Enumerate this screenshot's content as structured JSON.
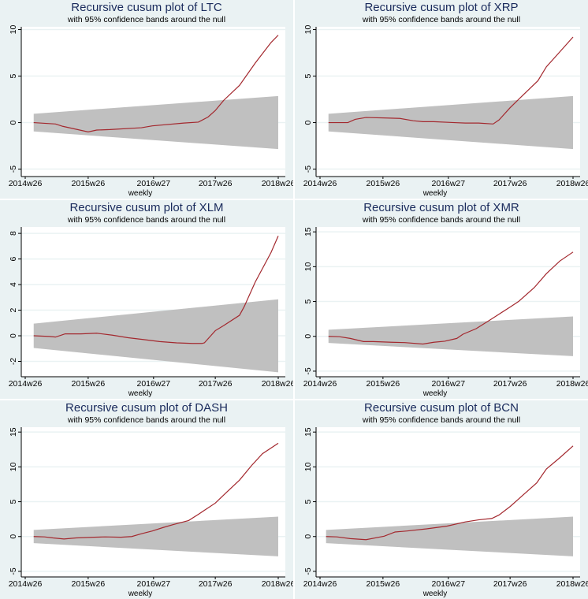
{
  "chart_data": [
    {
      "type": "line",
      "title": "Recursive cusum plot of LTC",
      "subtitle": "with 95% confidence bands around the null",
      "xlabel": "weekly",
      "ylabel": "",
      "xticks": [
        "2014w26",
        "2015w26",
        "2016w27",
        "2017w26",
        "2018w26"
      ],
      "yticks": [
        -5,
        0,
        5,
        10
      ],
      "ylim": [
        -5.8,
        10.3
      ],
      "grid": true,
      "band": {
        "upper": [
          0.95,
          2.85
        ],
        "lower": [
          -0.95,
          -2.85
        ],
        "color": "#c0c0c0"
      },
      "series": [
        {
          "color": "#a3282e",
          "points": [
            [
              "2014w33",
              0
            ],
            [
              "2014w51",
              -0.15
            ],
            [
              "2015w5",
              -0.4
            ],
            [
              "2015w26",
              -1.0
            ],
            [
              "2015w33",
              -0.8
            ],
            [
              "2015w44",
              -0.75
            ],
            [
              "2016w17",
              -0.55
            ],
            [
              "2016w26",
              -0.35
            ],
            [
              "2016w52",
              -0.05
            ],
            [
              "2017w12",
              0.05
            ],
            [
              "2017w20",
              0.6
            ],
            [
              "2017w26",
              1.3
            ],
            [
              "2017w33",
              2.4
            ],
            [
              "2017w46",
              4.0
            ],
            [
              "2018w7",
              6.4
            ],
            [
              "2018w20",
              8.6
            ],
            [
              "2018w26",
              9.4
            ]
          ]
        }
      ]
    },
    {
      "type": "line",
      "title": "Recursive cusum plot of XRP",
      "subtitle": "with 95% confidence bands around the null",
      "xlabel": "weekly",
      "ylabel": "",
      "xticks": [
        "2014w26",
        "2015w26",
        "2016w27",
        "2017w26",
        "2018w26"
      ],
      "yticks": [
        -5,
        0,
        5,
        10
      ],
      "ylim": [
        -5.8,
        10.3
      ],
      "grid": true,
      "band": {
        "upper": [
          0.95,
          2.85
        ],
        "lower": [
          -0.95,
          -2.85
        ],
        "color": "#c0c0c0"
      },
      "series": [
        {
          "color": "#a3282e",
          "points": [
            [
              "2014w33",
              0
            ],
            [
              "2014w49",
              0
            ],
            [
              "2015w3",
              0.35
            ],
            [
              "2015w12",
              0.55
            ],
            [
              "2015w27",
              0.5
            ],
            [
              "2015w40",
              0.45
            ],
            [
              "2015w51",
              0.2
            ],
            [
              "2016w6",
              0.1
            ],
            [
              "2016w15",
              0.1
            ],
            [
              "2016w32",
              0
            ],
            [
              "2016w41",
              -0.05
            ],
            [
              "2016w52",
              -0.05
            ],
            [
              "2017w12",
              -0.15
            ],
            [
              "2017w17",
              0.3
            ],
            [
              "2017w26",
              1.6
            ],
            [
              "2017w37",
              3.0
            ],
            [
              "2017w49",
              4.5
            ],
            [
              "2018w4",
              6.0
            ],
            [
              "2018w13",
              7.3
            ],
            [
              "2018w26",
              9.2
            ]
          ]
        }
      ]
    },
    {
      "type": "line",
      "title": "Recursive cusum plot of XLM",
      "subtitle": "with 95% confidence bands around the null",
      "xlabel": "weekly",
      "ylabel": "",
      "xticks": [
        "2014w26",
        "2015w26",
        "2016w27",
        "2017w26",
        "2018w26"
      ],
      "yticks": [
        -2,
        0,
        2,
        4,
        6,
        8
      ],
      "ylim": [
        -3.2,
        8.5
      ],
      "grid": true,
      "band": {
        "upper": [
          0.95,
          2.85
        ],
        "lower": [
          -0.95,
          -2.85
        ],
        "color": "#c0c0c0"
      },
      "series": [
        {
          "color": "#a3282e",
          "points": [
            [
              "2014w33",
              0
            ],
            [
              "2014w46",
              -0.05
            ],
            [
              "2014w51",
              -0.1
            ],
            [
              "2015w7",
              0.15
            ],
            [
              "2015w20",
              0.15
            ],
            [
              "2015w33",
              0.2
            ],
            [
              "2015w46",
              0.05
            ],
            [
              "2016w6",
              -0.15
            ],
            [
              "2016w19",
              -0.3
            ],
            [
              "2016w32",
              -0.45
            ],
            [
              "2016w46",
              -0.55
            ],
            [
              "2017w7",
              -0.6
            ],
            [
              "2017w15",
              -0.6
            ],
            [
              "2017w17",
              -0.55
            ],
            [
              "2017w26",
              0.4
            ],
            [
              "2017w33",
              0.8
            ],
            [
              "2017w46",
              1.6
            ],
            [
              "2017w50",
              2.3
            ],
            [
              "2018w7",
              4.2
            ],
            [
              "2018w20",
              6.5
            ],
            [
              "2018w26",
              7.8
            ]
          ]
        }
      ]
    },
    {
      "type": "line",
      "title": "Recursive cusum plot of XMR",
      "subtitle": "with 95% confidence bands around the null",
      "xlabel": "weekly",
      "ylabel": "",
      "xticks": [
        "2014w26",
        "2015w26",
        "2016w27",
        "2017w26",
        "2018w26"
      ],
      "yticks": [
        -5,
        0,
        5,
        10,
        15
      ],
      "ylim": [
        -5.8,
        15.7
      ],
      "grid": true,
      "band": {
        "upper": [
          0.95,
          2.85
        ],
        "lower": [
          -0.95,
          -2.85
        ],
        "color": "#c0c0c0"
      },
      "series": [
        {
          "color": "#a3282e",
          "points": [
            [
              "2014w33",
              0
            ],
            [
              "2014w42",
              -0.05
            ],
            [
              "2014w51",
              -0.3
            ],
            [
              "2015w10",
              -0.75
            ],
            [
              "2015w18",
              -0.75
            ],
            [
              "2015w33",
              -0.85
            ],
            [
              "2015w44",
              -0.9
            ],
            [
              "2016w6",
              -1.1
            ],
            [
              "2016w15",
              -0.85
            ],
            [
              "2016w24",
              -0.7
            ],
            [
              "2016w34",
              -0.3
            ],
            [
              "2016w39",
              0.3
            ],
            [
              "2016w50",
              1.1
            ],
            [
              "2017w9",
              2.3
            ],
            [
              "2017w17",
              3.2
            ],
            [
              "2017w26",
              4.2
            ],
            [
              "2017w33",
              5.0
            ],
            [
              "2017w46",
              7.0
            ],
            [
              "2018w4",
              9.0
            ],
            [
              "2018w15",
              10.8
            ],
            [
              "2018w26",
              12.1
            ]
          ]
        }
      ]
    },
    {
      "type": "line",
      "title": "Recursive cusum plot of DASH",
      "subtitle": "with 95% confidence bands around the null",
      "xlabel": "weekly",
      "ylabel": "",
      "xticks": [
        "2014w26",
        "2015w26",
        "2016w27",
        "2017w26",
        "2018w26"
      ],
      "yticks": [
        -5,
        0,
        5,
        10,
        15
      ],
      "ylim": [
        -5.8,
        15.7
      ],
      "grid": true,
      "band": {
        "upper": [
          0.95,
          2.85
        ],
        "lower": [
          -0.95,
          -2.85
        ],
        "color": "#c0c0c0"
      },
      "series": [
        {
          "color": "#a3282e",
          "points": [
            [
              "2014w33",
              0
            ],
            [
              "2014w42",
              -0.05
            ],
            [
              "2014w49",
              -0.2
            ],
            [
              "2015w6",
              -0.35
            ],
            [
              "2015w16",
              -0.2
            ],
            [
              "2015w31",
              -0.1
            ],
            [
              "2015w40",
              -0.05
            ],
            [
              "2015w53",
              -0.1
            ],
            [
              "2016w9",
              0
            ],
            [
              "2016w17",
              0.4
            ],
            [
              "2016w26",
              0.8
            ],
            [
              "2016w35",
              1.3
            ],
            [
              "2016w43",
              1.7
            ],
            [
              "2017w4",
              2.3
            ],
            [
              "2017w13",
              3.3
            ],
            [
              "2017w26",
              4.8
            ],
            [
              "2017w35",
              6.3
            ],
            [
              "2017w46",
              8.1
            ],
            [
              "2018w4",
              10.2
            ],
            [
              "2018w13",
              11.9
            ],
            [
              "2018w26",
              13.4
            ]
          ]
        }
      ]
    },
    {
      "type": "line",
      "title": "Recursive cusum plot of BCN",
      "subtitle": "with 95% confidence bands around the null",
      "xlabel": "weekly",
      "ylabel": "",
      "xticks": [
        "2014w26",
        "2015w26",
        "2016w27",
        "2017w26",
        "2018w26"
      ],
      "yticks": [
        -5,
        0,
        5,
        10,
        15
      ],
      "ylim": [
        -5.8,
        15.7
      ],
      "grid": true,
      "band": {
        "upper": [
          0.95,
          2.85
        ],
        "lower": [
          -0.95,
          -2.85
        ],
        "color": "#c0c0c0"
      },
      "series": [
        {
          "color": "#a3282e",
          "points": [
            [
              "2014w31",
              0
            ],
            [
              "2014w40",
              -0.05
            ],
            [
              "2014w51",
              -0.3
            ],
            [
              "2015w12",
              -0.45
            ],
            [
              "2015w27",
              0.05
            ],
            [
              "2015w36",
              0.65
            ],
            [
              "2015w46",
              0.8
            ],
            [
              "2016w9",
              1.1
            ],
            [
              "2016w26",
              1.5
            ],
            [
              "2016w41",
              2.1
            ],
            [
              "2016w52",
              2.4
            ],
            [
              "2017w11",
              2.6
            ],
            [
              "2017w17",
              3.1
            ],
            [
              "2017w26",
              4.3
            ],
            [
              "2017w37",
              6.0
            ],
            [
              "2017w48",
              7.7
            ],
            [
              "2018w4",
              9.7
            ],
            [
              "2018w15",
              11.3
            ],
            [
              "2018w26",
              13.0
            ]
          ]
        }
      ]
    }
  ]
}
